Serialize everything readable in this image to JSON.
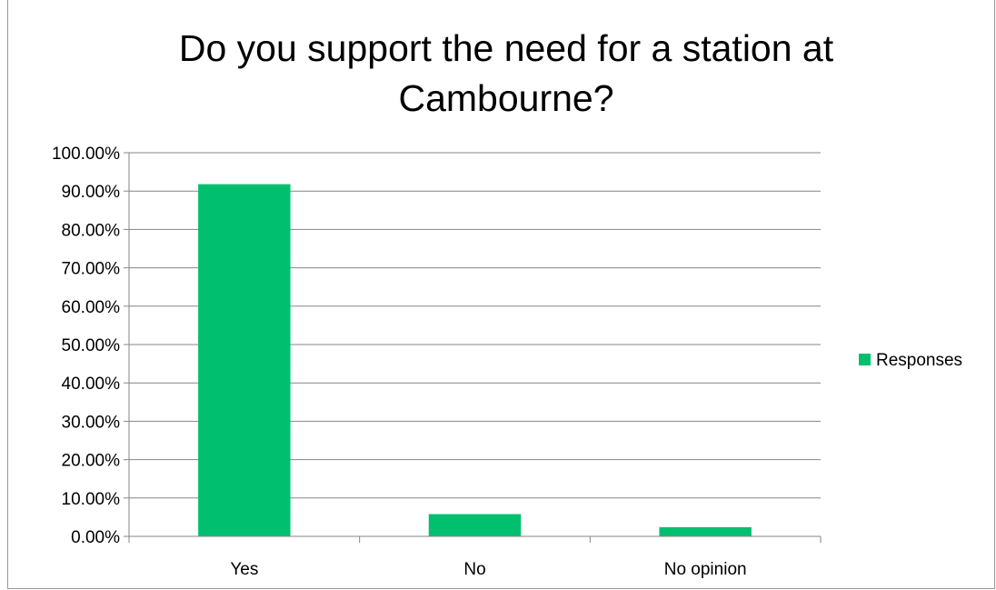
{
  "chart_data": {
    "type": "bar",
    "title_lines": [
      "Do you support the need for a station at",
      "Cambourne?"
    ],
    "categories": [
      "Yes",
      "No",
      "No opinion"
    ],
    "series": [
      {
        "name": "Responses",
        "values": [
          91.8,
          5.8,
          2.4
        ],
        "color": "#00c06f"
      }
    ],
    "ylim": [
      0,
      100
    ],
    "ytick_labels": [
      "0.00%",
      "10.00%",
      "20.00%",
      "30.00%",
      "40.00%",
      "50.00%",
      "60.00%",
      "70.00%",
      "80.00%",
      "90.00%",
      "100.00%"
    ],
    "grid": true,
    "legend_position": "right"
  }
}
